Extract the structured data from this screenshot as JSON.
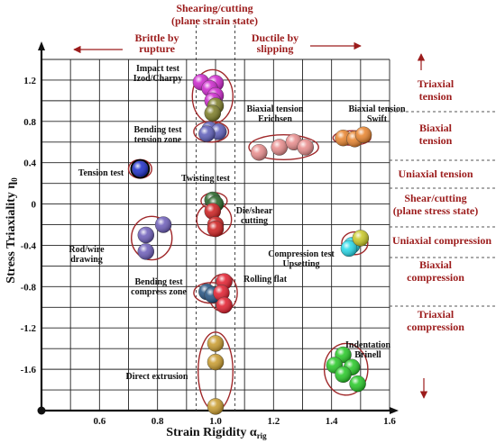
{
  "chart_data": {
    "type": "scatter",
    "xlabel": "Strain Rigidity α",
    "xlabel_sub": "rig",
    "ylabel": "Stress Triaxiality η",
    "ylabel_sub": "0",
    "xlim": [
      0.4,
      1.6
    ],
    "ylim": [
      -2.0,
      1.4
    ],
    "x_ticks": [
      0.6,
      0.8,
      1.0,
      1.2,
      1.4,
      1.6
    ],
    "y_ticks": [
      1.2,
      0.8,
      0.4,
      0,
      -0.4,
      -0.8,
      -1.2,
      -1.6
    ],
    "x_tick_labels": [
      "0.6",
      "0.8",
      "1.0",
      "1.2",
      "1.4",
      "1.6"
    ],
    "y_tick_labels": [
      "1.2",
      "0.8",
      "0.4",
      "0",
      "-0.4",
      "-0.8",
      "-1.2",
      "-1.6"
    ],
    "grid": true,
    "top_labels": {
      "shear": [
        "Shearing/cutting",
        "(plane strain state)"
      ],
      "brittle": [
        "Brittle by",
        "rupture"
      ],
      "ductile": [
        "Ductile by",
        "slipping"
      ]
    },
    "right_labels": [
      {
        "lines": [
          "Triaxial",
          "tension"
        ]
      },
      {
        "lines": [
          "Biaxial",
          "tension"
        ]
      },
      {
        "lines": [
          "Uniaxial tension"
        ]
      },
      {
        "lines": [
          "Shear/cutting",
          "(plane stress state)"
        ]
      },
      {
        "lines": [
          "Uniaxial compression"
        ]
      },
      {
        "lines": [
          "Biaxial",
          "compression"
        ]
      },
      {
        "lines": [
          "Triaxial",
          "compression"
        ]
      }
    ],
    "annotations": [
      {
        "lines": [
          "Impact test",
          "Izod/Charpy"
        ]
      },
      {
        "lines": [
          "Bending test",
          "tension zone"
        ]
      },
      {
        "lines": [
          "Tension test"
        ]
      },
      {
        "lines": [
          "Twisting test"
        ]
      },
      {
        "lines": [
          "Die/shear",
          "cutting"
        ]
      },
      {
        "lines": [
          "Rod/wire",
          "drawing"
        ]
      },
      {
        "lines": [
          "Bending test",
          "compress zone"
        ]
      },
      {
        "lines": [
          "Rolling flat"
        ]
      },
      {
        "lines": [
          "Biaxial tension",
          "Erichsen"
        ]
      },
      {
        "lines": [
          "Biaxial tension",
          "Swift"
        ]
      },
      {
        "lines": [
          "Compression test",
          "Upsetting"
        ]
      },
      {
        "lines": [
          "Indentation",
          "Brinell"
        ]
      },
      {
        "lines": [
          "Direct extrusion"
        ]
      }
    ],
    "series": [
      {
        "name": "Impact test Izod/Charpy",
        "color": "#cc22cc",
        "points": [
          [
            0.95,
            1.18
          ],
          [
            1.0,
            1.17
          ],
          [
            0.98,
            1.12
          ],
          [
            1.0,
            1.05
          ],
          [
            0.99,
            1.0
          ]
        ]
      },
      {
        "name": "Impact test Izod/Charpy (lower)",
        "color": "#7a7a22",
        "points": [
          [
            1.0,
            0.95
          ],
          [
            0.99,
            0.88
          ]
        ]
      },
      {
        "name": "Bending test tension zone",
        "color": "#5a5ab8",
        "points": [
          [
            0.98,
            0.72
          ],
          [
            1.01,
            0.7
          ],
          [
            0.97,
            0.68
          ]
        ]
      },
      {
        "name": "Tension test",
        "color": "#1a2ac8",
        "points": [
          [
            0.74,
            0.34
          ]
        ]
      },
      {
        "name": "Twisting test",
        "color": "#1f5f1f",
        "points": [
          [
            0.99,
            0.04
          ],
          [
            1.0,
            0.0
          ]
        ]
      },
      {
        "name": "Die/shear cutting",
        "color": "#cc1a1a",
        "points": [
          [
            0.99,
            -0.07
          ],
          [
            1.0,
            -0.2
          ],
          [
            1.0,
            -0.24
          ]
        ]
      },
      {
        "name": "Rod/wire drawing",
        "color": "#6a5ab8",
        "points": [
          [
            0.82,
            -0.2
          ],
          [
            0.76,
            -0.3
          ],
          [
            0.76,
            -0.46
          ]
        ]
      },
      {
        "name": "Bending test compress zone",
        "color": "#1f4f7f",
        "points": [
          [
            0.97,
            -0.85
          ],
          [
            0.99,
            -0.88
          ]
        ]
      },
      {
        "name": "Rolling flat",
        "color": "#e21a2a",
        "points": [
          [
            1.03,
            -0.75
          ],
          [
            1.02,
            -0.86
          ],
          [
            1.03,
            -0.98
          ]
        ]
      },
      {
        "name": "Biaxial tension Erichsen",
        "color": "#e88a8a",
        "points": [
          [
            1.15,
            0.5
          ],
          [
            1.22,
            0.55
          ],
          [
            1.27,
            0.6
          ],
          [
            1.31,
            0.55
          ]
        ]
      },
      {
        "name": "Biaxial tension Swift",
        "color": "#e8822a",
        "points": [
          [
            1.44,
            0.64
          ],
          [
            1.48,
            0.63
          ],
          [
            1.51,
            0.67
          ]
        ]
      },
      {
        "name": "Compression test Upsetting",
        "color": "#22d8e8",
        "points": [
          [
            1.47,
            -0.4
          ],
          [
            1.46,
            -0.43
          ]
        ]
      },
      {
        "name": "Compression test Upsetting (top)",
        "color": "#c8c822",
        "points": [
          [
            1.5,
            -0.33
          ]
        ]
      },
      {
        "name": "Indentation Brinell",
        "color": "#22c822",
        "points": [
          [
            1.44,
            -1.46
          ],
          [
            1.41,
            -1.56
          ],
          [
            1.47,
            -1.58
          ],
          [
            1.44,
            -1.65
          ],
          [
            1.49,
            -1.74
          ]
        ]
      },
      {
        "name": "Direct extrusion",
        "color": "#c89a2a",
        "points": [
          [
            1.0,
            -1.35
          ],
          [
            1.0,
            -1.53
          ],
          [
            1.0,
            -1.96
          ]
        ]
      }
    ]
  }
}
